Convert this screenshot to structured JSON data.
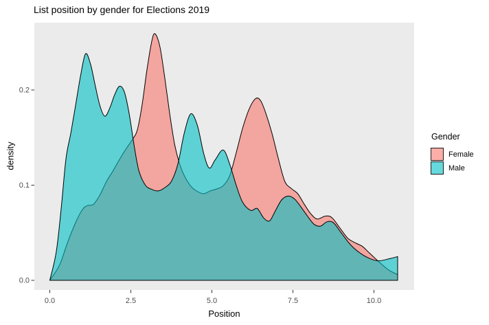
{
  "title": "List position by gender for Elections 2019",
  "axes": {
    "x": {
      "label": "Position",
      "tick_labels": [
        "0.0",
        "2.5",
        "5.0",
        "7.5",
        "10.0"
      ],
      "tick_values": [
        0,
        2.5,
        5,
        7.5,
        10
      ]
    },
    "y": {
      "label": "density",
      "tick_labels": [
        "0.0",
        "0.1",
        "0.2"
      ],
      "tick_values": [
        0,
        0.1,
        0.2
      ]
    }
  },
  "legend": {
    "title": "Gender",
    "items": [
      {
        "label": "Female",
        "color": "#F8766D"
      },
      {
        "label": "Male",
        "color": "#00BFC4"
      }
    ]
  },
  "style": {
    "panel_bg": "#EBEBEB",
    "figure_bg": "#FFFFFF",
    "curve_outline": "#000000",
    "axis_text_color": "#4D4D4D",
    "tick_color": "#333333",
    "fill_alpha": 0.6
  },
  "chart_data": {
    "type": "area",
    "title": "List position by gender for Elections 2019",
    "xlabel": "Position",
    "ylabel": "density",
    "xlim": [
      -0.5,
      11.2
    ],
    "ylim": [
      0,
      0.27
    ],
    "grid": false,
    "legend_position": "right",
    "legend_title": "Gender",
    "series": [
      {
        "name": "Female",
        "color": "#F8766D",
        "points": [
          [
            0.0,
            0.0
          ],
          [
            0.3,
            0.016
          ],
          [
            0.55,
            0.04
          ],
          [
            0.8,
            0.061
          ],
          [
            1.0,
            0.074
          ],
          [
            1.15,
            0.0785
          ],
          [
            1.35,
            0.08
          ],
          [
            1.55,
            0.09
          ],
          [
            1.75,
            0.104
          ],
          [
            1.95,
            0.115
          ],
          [
            2.15,
            0.127
          ],
          [
            2.35,
            0.138
          ],
          [
            2.55,
            0.148
          ],
          [
            2.7,
            0.158
          ],
          [
            2.85,
            0.185
          ],
          [
            3.0,
            0.222
          ],
          [
            3.15,
            0.252
          ],
          [
            3.25,
            0.259
          ],
          [
            3.4,
            0.245
          ],
          [
            3.55,
            0.212
          ],
          [
            3.7,
            0.175
          ],
          [
            3.85,
            0.143
          ],
          [
            4.0,
            0.123
          ],
          [
            4.15,
            0.11
          ],
          [
            4.35,
            0.099
          ],
          [
            4.55,
            0.0935
          ],
          [
            4.75,
            0.091
          ],
          [
            4.95,
            0.094
          ],
          [
            5.15,
            0.096
          ],
          [
            5.35,
            0.0995
          ],
          [
            5.55,
            0.11
          ],
          [
            5.75,
            0.134
          ],
          [
            5.95,
            0.16
          ],
          [
            6.15,
            0.18
          ],
          [
            6.35,
            0.191
          ],
          [
            6.5,
            0.189
          ],
          [
            6.65,
            0.177
          ],
          [
            6.85,
            0.155
          ],
          [
            7.05,
            0.128
          ],
          [
            7.25,
            0.104
          ],
          [
            7.45,
            0.0965
          ],
          [
            7.65,
            0.091
          ],
          [
            7.85,
            0.08
          ],
          [
            8.05,
            0.07
          ],
          [
            8.25,
            0.0645
          ],
          [
            8.5,
            0.0675
          ],
          [
            8.7,
            0.066
          ],
          [
            8.95,
            0.055
          ],
          [
            9.2,
            0.044
          ],
          [
            9.45,
            0.039
          ],
          [
            9.65,
            0.0355
          ],
          [
            9.85,
            0.029
          ],
          [
            10.15,
            0.0195
          ],
          [
            10.45,
            0.011
          ],
          [
            10.73,
            0.006
          ]
        ]
      },
      {
        "name": "Male",
        "color": "#00BFC4",
        "points": [
          [
            0.0,
            0.0
          ],
          [
            0.2,
            0.03
          ],
          [
            0.35,
            0.075
          ],
          [
            0.5,
            0.128
          ],
          [
            0.65,
            0.155
          ],
          [
            0.8,
            0.185
          ],
          [
            0.95,
            0.215
          ],
          [
            1.1,
            0.238
          ],
          [
            1.25,
            0.228
          ],
          [
            1.4,
            0.205
          ],
          [
            1.55,
            0.183
          ],
          [
            1.7,
            0.1725
          ],
          [
            1.85,
            0.181
          ],
          [
            2.0,
            0.195
          ],
          [
            2.15,
            0.204
          ],
          [
            2.3,
            0.198
          ],
          [
            2.45,
            0.175
          ],
          [
            2.6,
            0.142
          ],
          [
            2.75,
            0.115
          ],
          [
            2.95,
            0.1
          ],
          [
            3.15,
            0.0955
          ],
          [
            3.35,
            0.094
          ],
          [
            3.55,
            0.0975
          ],
          [
            3.75,
            0.104
          ],
          [
            3.95,
            0.122
          ],
          [
            4.15,
            0.155
          ],
          [
            4.35,
            0.175
          ],
          [
            4.55,
            0.163
          ],
          [
            4.75,
            0.133
          ],
          [
            4.92,
            0.118
          ],
          [
            5.1,
            0.1265
          ],
          [
            5.35,
            0.137
          ],
          [
            5.55,
            0.122
          ],
          [
            5.75,
            0.1
          ],
          [
            5.95,
            0.082
          ],
          [
            6.2,
            0.0735
          ],
          [
            6.4,
            0.0755
          ],
          [
            6.6,
            0.0655
          ],
          [
            6.78,
            0.0625
          ],
          [
            6.95,
            0.0725
          ],
          [
            7.15,
            0.0845
          ],
          [
            7.35,
            0.0885
          ],
          [
            7.55,
            0.0855
          ],
          [
            7.75,
            0.077
          ],
          [
            7.95,
            0.0675
          ],
          [
            8.15,
            0.059
          ],
          [
            8.35,
            0.057
          ],
          [
            8.55,
            0.0615
          ],
          [
            8.75,
            0.0605
          ],
          [
            9.0,
            0.0495
          ],
          [
            9.3,
            0.0365
          ],
          [
            9.6,
            0.028
          ],
          [
            9.9,
            0.0225
          ],
          [
            10.15,
            0.0205
          ],
          [
            10.45,
            0.0225
          ],
          [
            10.73,
            0.025
          ]
        ]
      }
    ]
  }
}
